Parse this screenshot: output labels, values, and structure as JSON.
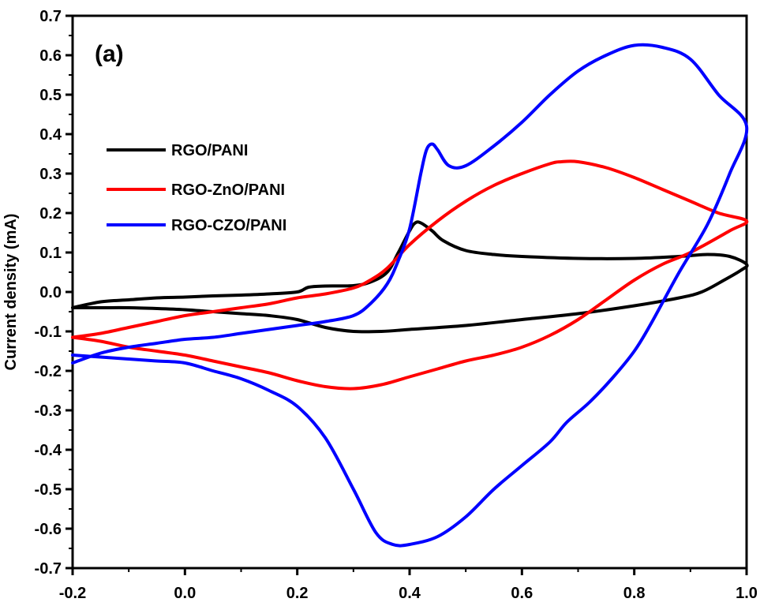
{
  "chart_data": {
    "type": "line",
    "panel_label": "(a)",
    "title": "",
    "xlabel": "",
    "ylabel": "Current density (mA)",
    "xlim": [
      -0.2,
      1.0
    ],
    "ylim": [
      -0.7,
      0.7
    ],
    "x_ticks": [
      "-0.2",
      "0.0",
      "0.2",
      "0.4",
      "0.6",
      "0.8",
      "1.0"
    ],
    "y_ticks": [
      "-0.7",
      "-0.6",
      "-0.5",
      "-0.4",
      "-0.3",
      "-0.2",
      "-0.1",
      "0.0",
      "0.1",
      "0.2",
      "0.3",
      "0.4",
      "0.5",
      "0.6",
      "0.7"
    ],
    "grid": false,
    "legend_position": "left",
    "series": [
      {
        "name": "RGO/PANI",
        "color": "#000000",
        "x": [
          -0.2,
          -0.15,
          -0.1,
          -0.05,
          0.0,
          0.05,
          0.1,
          0.15,
          0.2,
          0.22,
          0.25,
          0.3,
          0.33,
          0.36,
          0.38,
          0.4,
          0.41,
          0.42,
          0.44,
          0.46,
          0.5,
          0.55,
          0.6,
          0.7,
          0.8,
          0.88,
          0.93,
          0.97,
          1.0,
          0.99,
          0.96,
          0.92,
          0.88,
          0.8,
          0.7,
          0.6,
          0.5,
          0.4,
          0.35,
          0.3,
          0.25,
          0.2,
          0.15,
          0.1,
          0.05,
          0.0,
          -0.05,
          -0.1,
          -0.15,
          -0.2
        ],
        "y": [
          -0.04,
          -0.025,
          -0.02,
          -0.015,
          -0.013,
          -0.01,
          -0.008,
          -0.005,
          0.0,
          0.012,
          0.015,
          0.016,
          0.025,
          0.05,
          0.1,
          0.155,
          0.175,
          0.175,
          0.155,
          0.13,
          0.105,
          0.095,
          0.09,
          0.085,
          0.085,
          0.09,
          0.095,
          0.09,
          0.07,
          0.055,
          0.03,
          0.0,
          -0.015,
          -0.035,
          -0.055,
          -0.07,
          -0.085,
          -0.095,
          -0.1,
          -0.1,
          -0.09,
          -0.07,
          -0.06,
          -0.055,
          -0.05,
          -0.045,
          -0.042,
          -0.04,
          -0.04,
          -0.04
        ]
      },
      {
        "name": "RGO-ZnO/PANI",
        "color": "#ff0000",
        "x": [
          -0.2,
          -0.15,
          -0.1,
          -0.05,
          0.0,
          0.05,
          0.1,
          0.15,
          0.2,
          0.25,
          0.3,
          0.33,
          0.36,
          0.4,
          0.45,
          0.5,
          0.55,
          0.6,
          0.65,
          0.67,
          0.7,
          0.75,
          0.8,
          0.85,
          0.9,
          0.95,
          1.0,
          0.97,
          0.9,
          0.85,
          0.8,
          0.75,
          0.7,
          0.65,
          0.6,
          0.55,
          0.5,
          0.45,
          0.4,
          0.35,
          0.3,
          0.25,
          0.2,
          0.15,
          0.1,
          0.05,
          0.0,
          -0.05,
          -0.1,
          -0.15,
          -0.2
        ],
        "y": [
          -0.115,
          -0.105,
          -0.09,
          -0.075,
          -0.06,
          -0.05,
          -0.04,
          -0.03,
          -0.015,
          -0.005,
          0.01,
          0.03,
          0.06,
          0.12,
          0.18,
          0.23,
          0.27,
          0.3,
          0.325,
          0.33,
          0.33,
          0.315,
          0.29,
          0.26,
          0.23,
          0.2,
          0.18,
          0.155,
          0.1,
          0.07,
          0.03,
          -0.02,
          -0.07,
          -0.11,
          -0.14,
          -0.16,
          -0.175,
          -0.195,
          -0.215,
          -0.235,
          -0.245,
          -0.24,
          -0.225,
          -0.205,
          -0.19,
          -0.175,
          -0.16,
          -0.15,
          -0.14,
          -0.125,
          -0.115
        ]
      },
      {
        "name": "RGO-CZO/PANI",
        "color": "#0000ff",
        "x": [
          -0.2,
          -0.15,
          -0.1,
          -0.05,
          0.0,
          0.05,
          0.1,
          0.15,
          0.2,
          0.25,
          0.3,
          0.33,
          0.36,
          0.38,
          0.4,
          0.42,
          0.43,
          0.44,
          0.45,
          0.47,
          0.5,
          0.55,
          0.6,
          0.65,
          0.7,
          0.75,
          0.8,
          0.85,
          0.9,
          0.95,
          1.0,
          0.97,
          0.93,
          0.88,
          0.83,
          0.8,
          0.76,
          0.72,
          0.68,
          0.65,
          0.6,
          0.55,
          0.5,
          0.45,
          0.4,
          0.37,
          0.34,
          0.3,
          0.25,
          0.2,
          0.15,
          0.1,
          0.05,
          0.0,
          -0.05,
          -0.1,
          -0.15,
          -0.2
        ],
        "y": [
          -0.18,
          -0.155,
          -0.14,
          -0.13,
          -0.12,
          -0.115,
          -0.105,
          -0.095,
          -0.085,
          -0.075,
          -0.06,
          -0.03,
          0.02,
          0.08,
          0.16,
          0.3,
          0.36,
          0.375,
          0.36,
          0.32,
          0.32,
          0.37,
          0.43,
          0.5,
          0.56,
          0.6,
          0.625,
          0.62,
          0.59,
          0.5,
          0.42,
          0.3,
          0.17,
          0.05,
          -0.08,
          -0.15,
          -0.22,
          -0.28,
          -0.33,
          -0.38,
          -0.44,
          -0.5,
          -0.57,
          -0.62,
          -0.64,
          -0.64,
          -0.61,
          -0.5,
          -0.37,
          -0.29,
          -0.25,
          -0.22,
          -0.2,
          -0.18,
          -0.175,
          -0.17,
          -0.165,
          -0.16
        ]
      }
    ]
  }
}
